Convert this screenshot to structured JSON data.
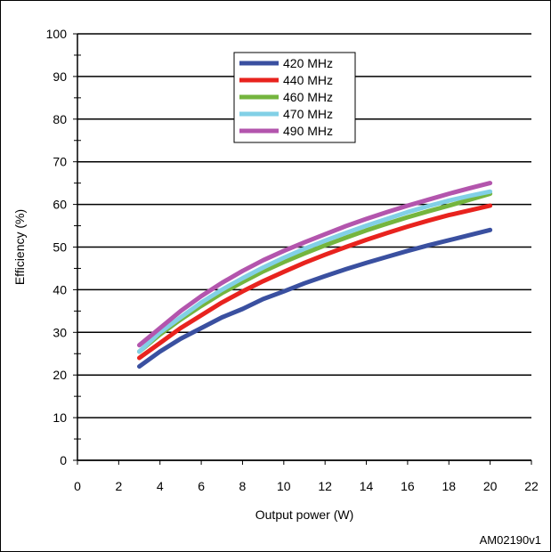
{
  "chart_data": {
    "type": "line",
    "title": "",
    "xlabel": "Output power (W)",
    "ylabel": "Efficiency (%)",
    "xlim": [
      0,
      22
    ],
    "ylim": [
      0,
      100
    ],
    "x_ticks": [
      0,
      2,
      4,
      6,
      8,
      10,
      12,
      14,
      16,
      18,
      20,
      22
    ],
    "y_ticks": [
      0,
      10,
      20,
      30,
      40,
      50,
      60,
      70,
      80,
      90,
      100
    ],
    "grid": "horizontal",
    "legend_position": "top-center",
    "x": [
      3,
      4,
      5,
      6,
      7,
      8,
      9,
      10,
      11,
      12,
      13,
      14,
      15,
      16,
      17,
      18,
      19,
      20
    ],
    "series": [
      {
        "name": "420 MHz",
        "color": "#3a50a0",
        "values": [
          22,
          25.5,
          28.5,
          31,
          33.5,
          35.5,
          37.8,
          39.6,
          41.5,
          43.2,
          44.8,
          46.3,
          47.7,
          49.1,
          50.4,
          51.6,
          52.8,
          54
        ]
      },
      {
        "name": "440 MHz",
        "color": "#e8231e",
        "values": [
          24,
          27.5,
          31,
          34,
          37,
          39.6,
          42,
          44.2,
          46.3,
          48.2,
          50,
          51.7,
          53.3,
          54.8,
          56.2,
          57.5,
          58.6,
          59.7
        ]
      },
      {
        "name": "460 MHz",
        "color": "#74b53e",
        "values": [
          25.5,
          29.5,
          33,
          36.2,
          39.2,
          41.8,
          44.3,
          46.5,
          48.5,
          50.4,
          52.2,
          53.9,
          55.5,
          57,
          58.4,
          59.7,
          61.1,
          62.5
        ]
      },
      {
        "name": "470 MHz",
        "color": "#82d0e6",
        "values": [
          25.5,
          30,
          33.5,
          37,
          40,
          42.7,
          45.2,
          47.5,
          49.6,
          51.5,
          53.3,
          55,
          56.6,
          58.2,
          59.6,
          60.9,
          62,
          63
        ]
      },
      {
        "name": "490 MHz",
        "color": "#b355ad",
        "values": [
          27,
          31,
          35,
          38.5,
          41.6,
          44.4,
          46.9,
          49.1,
          51.1,
          53,
          54.9,
          56.6,
          58.2,
          59.7,
          61.1,
          62.5,
          63.8,
          65
        ]
      }
    ]
  },
  "figure_id": "AM02190v1"
}
